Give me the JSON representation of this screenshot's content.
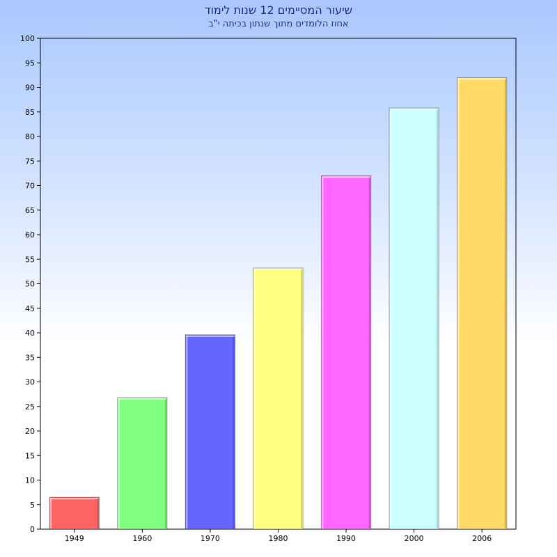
{
  "chart_data": {
    "type": "bar",
    "title": "שיעור המסיימים 12 שנות לימוד",
    "subtitle": "אחוז הלומדים מתוך שנתון בכיתה י\"ב",
    "xlabel": "",
    "ylabel": "",
    "categories": [
      "1949",
      "1960",
      "1970",
      "1980",
      "1990",
      "2000",
      "2006"
    ],
    "values": [
      6.5,
      26.8,
      39.6,
      53.2,
      72,
      85.8,
      92
    ],
    "ylim": [
      0,
      100
    ],
    "yticks": [
      0,
      5,
      10,
      15,
      20,
      25,
      30,
      35,
      40,
      45,
      50,
      55,
      60,
      65,
      70,
      75,
      80,
      85,
      90,
      95,
      100
    ],
    "grid": false,
    "colors": [
      "#ff6464",
      "#80ff80",
      "#6666ff",
      "#ffff80",
      "#ff66ff",
      "#ccffff",
      "#ffda66"
    ]
  }
}
